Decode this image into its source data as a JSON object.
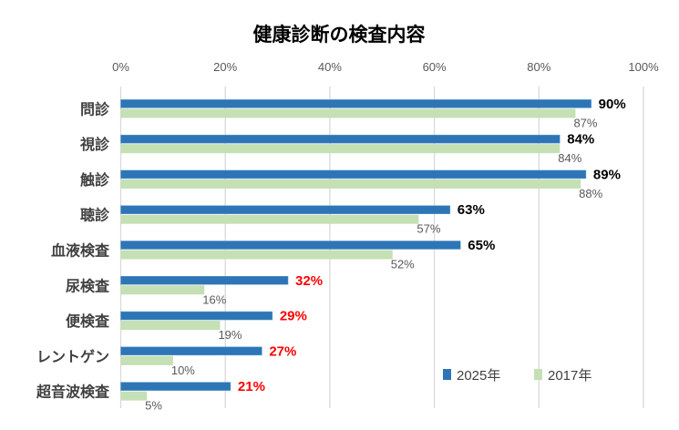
{
  "chart_data": {
    "type": "bar",
    "orientation": "horizontal",
    "title": "健康診断の検査内容",
    "categories": [
      "問診",
      "視診",
      "触診",
      "聴診",
      "血液検査",
      "尿検査",
      "便検査",
      "レントゲン",
      "超音波検査"
    ],
    "series": [
      {
        "name": "2025年",
        "color": "#2E75B6",
        "values": [
          90,
          84,
          89,
          63,
          65,
          32,
          29,
          27,
          21
        ],
        "label_colors": [
          "#000000",
          "#000000",
          "#000000",
          "#000000",
          "#000000",
          "#FF0000",
          "#FF0000",
          "#FF0000",
          "#FF0000"
        ]
      },
      {
        "name": "2017年",
        "color": "#C5E0B4",
        "values": [
          87,
          84,
          88,
          57,
          52,
          16,
          19,
          10,
          5
        ]
      }
    ],
    "xlim": [
      0,
      100
    ],
    "ticks": [
      "0%",
      "20%",
      "40%",
      "60%",
      "80%",
      "100%"
    ],
    "tick_values": [
      0,
      20,
      40,
      60,
      80,
      100
    ],
    "axis_position": "top",
    "grid": true,
    "legend_position": "bottom-right",
    "value_suffix": "%"
  }
}
